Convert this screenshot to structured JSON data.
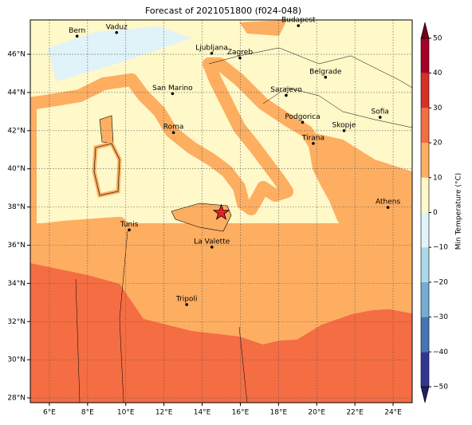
{
  "title": "Forecast of 2021051800 (f024-048)",
  "map": {
    "xlim": [
      5,
      25
    ],
    "ylim": [
      27.75,
      47.8
    ],
    "xticks": [
      {
        "value": 6,
        "label": "6°E"
      },
      {
        "value": 8,
        "label": "8°E"
      },
      {
        "value": 10,
        "label": "10°E"
      },
      {
        "value": 12,
        "label": "12°E"
      },
      {
        "value": 14,
        "label": "14°E"
      },
      {
        "value": 16,
        "label": "16°E"
      },
      {
        "value": 18,
        "label": "18°E"
      },
      {
        "value": 20,
        "label": "20°E"
      },
      {
        "value": 22,
        "label": "22°E"
      },
      {
        "value": 24,
        "label": "24°E"
      }
    ],
    "yticks": [
      {
        "value": 28,
        "label": "28°N"
      },
      {
        "value": 30,
        "label": "30°N"
      },
      {
        "value": 32,
        "label": "32°N"
      },
      {
        "value": 34,
        "label": "34°N"
      },
      {
        "value": 36,
        "label": "36°N"
      },
      {
        "value": 38,
        "label": "38°N"
      },
      {
        "value": 40,
        "label": "40°N"
      },
      {
        "value": 42,
        "label": "42°N"
      },
      {
        "value": 44,
        "label": "44°N"
      },
      {
        "value": 46,
        "label": "46°N"
      }
    ],
    "grid": true,
    "cities": [
      {
        "name": "Bern",
        "lon": 7.45,
        "lat": 46.95
      },
      {
        "name": "Vaduz",
        "lon": 9.52,
        "lat": 47.14
      },
      {
        "name": "Budapest",
        "lon": 19.04,
        "lat": 47.5
      },
      {
        "name": "Ljubljana",
        "lon": 14.5,
        "lat": 46.05
      },
      {
        "name": "Zagreb",
        "lon": 15.98,
        "lat": 45.81
      },
      {
        "name": "Belgrade",
        "lon": 20.46,
        "lat": 44.8
      },
      {
        "name": "Sarajevo",
        "lon": 18.4,
        "lat": 43.85
      },
      {
        "name": "San Marino",
        "lon": 12.45,
        "lat": 43.94
      },
      {
        "name": "Sofia",
        "lon": 23.32,
        "lat": 42.7
      },
      {
        "name": "Podgorica",
        "lon": 19.26,
        "lat": 42.44
      },
      {
        "name": "Skopje",
        "lon": 21.43,
        "lat": 42.0
      },
      {
        "name": "Roma",
        "lon": 12.5,
        "lat": 41.9
      },
      {
        "name": "Tirana",
        "lon": 19.82,
        "lat": 41.33
      },
      {
        "name": "Athens",
        "lon": 23.73,
        "lat": 37.98
      },
      {
        "name": "Tunis",
        "lon": 10.18,
        "lat": 36.8
      },
      {
        "name": "La Valette",
        "lon": 14.51,
        "lat": 35.9
      },
      {
        "name": "Tripoli",
        "lon": 13.19,
        "lat": 32.89
      }
    ],
    "marker": {
      "lon": 15.0,
      "lat": 37.7,
      "color": "#e8202a"
    }
  },
  "colorbar": {
    "label": "Min Temperature (°C)",
    "lim": [
      -50,
      50
    ],
    "ticks": [
      {
        "value": -50,
        "label": "−50"
      },
      {
        "value": -40,
        "label": "−40"
      },
      {
        "value": -30,
        "label": "−30"
      },
      {
        "value": -20,
        "label": "−20"
      },
      {
        "value": -10,
        "label": "−10"
      },
      0,
      10,
      20,
      30,
      40,
      50
    ],
    "colors": [
      "#313695",
      "#4575b4",
      "#74add1",
      "#abd9e9",
      "#e0f3f8",
      "#fff8c8",
      "#fdae61",
      "#f46d43",
      "#d73027",
      "#a50026"
    ],
    "under": "#20205e",
    "over": "#700018"
  }
}
